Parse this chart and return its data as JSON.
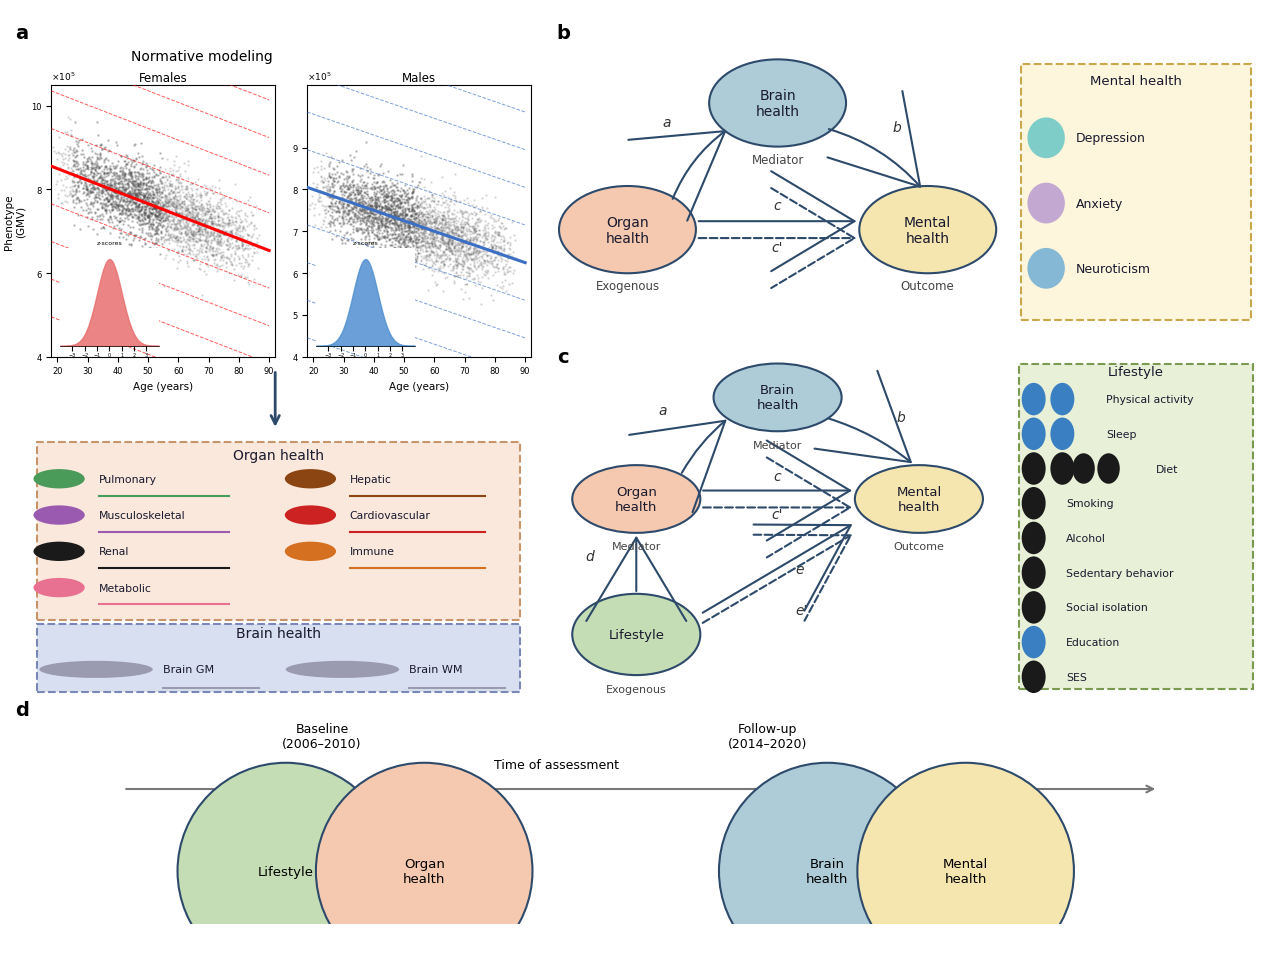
{
  "bg_color": "#ffffff",
  "panel_a_title": "Normative modeling",
  "females_label": "Females",
  "males_label": "Males",
  "panel_b_nodes": {
    "brain": {
      "label": "Brain\nhealth",
      "color": "#aeccd8",
      "edge": "#2d4a6b"
    },
    "organ": {
      "label": "Organ\nhealth",
      "color": "#f5c9b0",
      "edge": "#2d4a6b"
    },
    "mental": {
      "label": "Mental\nhealth",
      "color": "#f5e6b0",
      "edge": "#2d4a6b"
    }
  },
  "mental_health_box": {
    "title": "Mental health",
    "bg": "#fdf5dc",
    "border": "#c8a84b",
    "items": [
      {
        "label": "Depression",
        "color": "#7ecdc8"
      },
      {
        "label": "Anxiety",
        "color": "#c3a8d1"
      },
      {
        "label": "Neuroticism",
        "color": "#85b8d4"
      }
    ]
  },
  "panel_c_nodes": {
    "brain": {
      "label": "Brain\nhealth",
      "color": "#aeccd8",
      "edge": "#2d4a6b"
    },
    "organ": {
      "label": "Organ\nhealth",
      "color": "#f5c9b0",
      "edge": "#2d4a6b"
    },
    "mental": {
      "label": "Mental\nhealth",
      "color": "#f5e6b0",
      "edge": "#2d4a6b"
    },
    "lifestyle": {
      "label": "Lifestyle",
      "color": "#c5ddb5",
      "edge": "#2d4a6b"
    }
  },
  "lifestyle_box": {
    "title": "Lifestyle",
    "bg": "#e8f0d8",
    "border": "#7a9a50",
    "items": [
      {
        "label": "Physical activity",
        "n_icons": 2,
        "icon_color": "#3a7fc1"
      },
      {
        "label": "Sleep",
        "n_icons": 2,
        "icon_color": "#3a7fc1"
      },
      {
        "label": "Diet",
        "n_icons": 4,
        "icon_color": "#1a1a1a"
      },
      {
        "label": "Smoking",
        "n_icons": 1,
        "icon_color": "#1a1a1a"
      },
      {
        "label": "Alcohol",
        "n_icons": 1,
        "icon_color": "#1a1a1a"
      },
      {
        "label": "Sedentary behavior",
        "n_icons": 1,
        "icon_color": "#1a1a1a"
      },
      {
        "label": "Social isolation",
        "n_icons": 1,
        "icon_color": "#1a1a1a"
      },
      {
        "label": "Education",
        "n_icons": 1,
        "icon_color": "#3a7fc1"
      },
      {
        "label": "SES",
        "n_icons": 1,
        "icon_color": "#1a1a1a"
      }
    ]
  },
  "organ_health_box": {
    "title": "Organ health",
    "bg": "#fae8dd",
    "border": "#c8956a",
    "items_left": [
      {
        "label": "Pulmonary",
        "icon_color": "#4a9a5a",
        "line_color": "#4a9a5a"
      },
      {
        "label": "Musculoskeletal",
        "icon_color": "#9a5ab0",
        "line_color": "#9a5ab0"
      },
      {
        "label": "Renal",
        "icon_color": "#1a1a1a",
        "line_color": "#1a1a1a"
      },
      {
        "label": "Metabolic",
        "icon_color": "#e87090",
        "line_color": "#e87090"
      }
    ],
    "items_right": [
      {
        "label": "Hepatic",
        "icon_color": "#8b4513",
        "line_color": "#8b4513"
      },
      {
        "label": "Cardiovascular",
        "icon_color": "#cc2222",
        "line_color": "#cc2222"
      },
      {
        "label": "Immune",
        "icon_color": "#d47020",
        "line_color": "#d47020"
      }
    ]
  },
  "brain_health_box": {
    "title": "Brain health",
    "bg": "#d8dff0",
    "border": "#7a88b8",
    "items": [
      {
        "label": "Brain GM",
        "icon_color": "#9090a0"
      },
      {
        "label": "Brain WM",
        "icon_color": "#9090a0"
      }
    ]
  },
  "panel_d": {
    "baseline_label": "Baseline\n(2006–2010)",
    "followup_label": "Follow-up\n(2014–2020)",
    "timeline_label": "Time of assessment",
    "nodes": [
      {
        "label": "Lifestyle",
        "color": "#c5ddb5",
        "edge": "#2d4a6b"
      },
      {
        "label": "Organ\nhealth",
        "color": "#f5c9b0",
        "edge": "#2d4a6b"
      },
      {
        "label": "Brain\nhealth",
        "color": "#aeccd8",
        "edge": "#2d4a6b"
      },
      {
        "label": "Mental\nhealth",
        "color": "#f5e6b0",
        "edge": "#2d4a6b"
      }
    ]
  }
}
